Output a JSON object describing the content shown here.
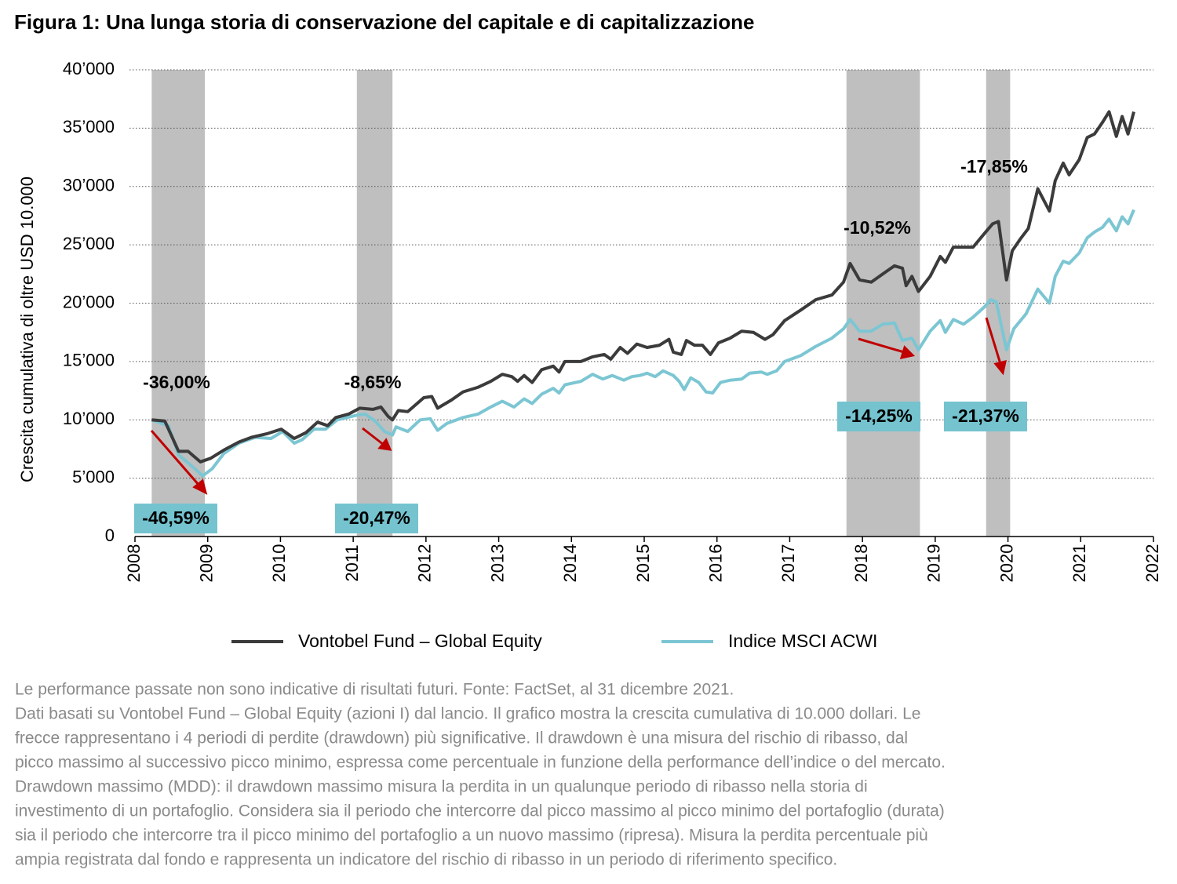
{
  "chart_data": {
    "type": "line",
    "title": "Figura 1: Una lunga storia di conservazione del capitale e di capitalizzazione",
    "y_label": "Crescita cumulativa di oltre USD 10.000",
    "xlim": [
      2008,
      2022
    ],
    "xticks": [
      2008,
      2009,
      2010,
      2011,
      2012,
      2013,
      2014,
      2015,
      2016,
      2017,
      2018,
      2019,
      2020,
      2021,
      2022
    ],
    "ylim": [
      0,
      40000
    ],
    "yticks": [
      0,
      {
        "value": 5000,
        "label": "5’000"
      },
      {
        "value": 10000,
        "label": "10’000"
      },
      {
        "value": 15000,
        "label": "15’000"
      },
      {
        "value": 20000,
        "label": "20’000"
      },
      {
        "value": 25000,
        "label": "25’000"
      },
      {
        "value": 30000,
        "label": "30’000"
      },
      {
        "value": 35000,
        "label": "35’000"
      },
      {
        "value": 40000,
        "label": "40’000"
      }
    ],
    "grid": true,
    "shaded_periods": [
      [
        2008.23,
        2008.96
      ],
      [
        2011.05,
        2011.54
      ],
      [
        2017.78,
        2018.79
      ],
      [
        2019.7,
        2020.03
      ]
    ],
    "shade_color": "#bfbfbf",
    "annotations": [
      "-36,00%",
      "-8,65%",
      "-10,52%",
      "-17,85%"
    ],
    "boxed_annotations": [
      "-46,59%",
      "-20,47%",
      "-14,25%",
      "-21,37%"
    ],
    "box_color": "#74c3cf",
    "series": [
      {
        "name": "Vontobel Fund – Global Equity",
        "color": "#3b3b3b",
        "x": [
          2008.23,
          2008.41,
          2008.6,
          2008.73,
          2008.9,
          2009.04,
          2009.22,
          2009.43,
          2009.6,
          2009.81,
          2010.01,
          2010.19,
          2010.35,
          2010.51,
          2010.65,
          2010.76,
          2010.94,
          2011.09,
          2011.27,
          2011.38,
          2011.48,
          2011.54,
          2011.62,
          2011.75,
          2011.97,
          2012.08,
          2012.16,
          2012.35,
          2012.51,
          2012.72,
          2012.89,
          2013.05,
          2013.18,
          2013.26,
          2013.35,
          2013.46,
          2013.59,
          2013.75,
          2013.83,
          2013.91,
          2014.13,
          2014.29,
          2014.45,
          2014.54,
          2014.67,
          2014.77,
          2014.9,
          2015.04,
          2015.21,
          2015.34,
          2015.4,
          2015.51,
          2015.58,
          2015.69,
          2015.8,
          2015.91,
          2016.02,
          2016.18,
          2016.34,
          2016.5,
          2016.66,
          2016.77,
          2016.93,
          2017.15,
          2017.36,
          2017.58,
          2017.74,
          2017.83,
          2017.96,
          2018.12,
          2018.28,
          2018.44,
          2018.55,
          2018.6,
          2018.68,
          2018.77,
          2018.93,
          2019.07,
          2019.14,
          2019.25,
          2019.52,
          2019.68,
          2019.79,
          2019.87,
          2019.98,
          2020.06,
          2020.17,
          2020.28,
          2020.41,
          2020.57,
          2020.65,
          2020.76,
          2020.84,
          2020.98,
          2021.09,
          2021.19,
          2021.3,
          2021.39,
          2021.49,
          2021.57,
          2021.65,
          2021.73
        ],
        "values": [
          10000,
          9900,
          7300,
          7300,
          6400,
          6700,
          7400,
          8100,
          8500,
          8800,
          9200,
          8400,
          8900,
          9800,
          9500,
          10200,
          10500,
          11000,
          10900,
          11100,
          10300,
          10000,
          10800,
          10700,
          11900,
          12000,
          11000,
          11700,
          12400,
          12800,
          13300,
          13900,
          13700,
          13300,
          13800,
          13200,
          14300,
          14600,
          14100,
          15000,
          15000,
          15400,
          15600,
          15200,
          16200,
          15700,
          16500,
          16200,
          16400,
          16900,
          15800,
          15600,
          16800,
          16400,
          16400,
          15600,
          16600,
          17000,
          17600,
          17500,
          16900,
          17300,
          18500,
          19400,
          20300,
          20700,
          21800,
          23400,
          22000,
          21800,
          22500,
          23200,
          23000,
          21500,
          22300,
          21000,
          22300,
          24000,
          23500,
          24800,
          24800,
          26000,
          26800,
          27000,
          22000,
          24500,
          25500,
          26400,
          29800,
          27900,
          30500,
          32000,
          31000,
          32300,
          34200,
          34500,
          35500,
          36400,
          34300,
          36000,
          34500,
          36400
        ]
      },
      {
        "name": "Indice MSCI ACWI",
        "color": "#7cc6d3",
        "x": [
          2008.23,
          2008.46,
          2008.6,
          2008.79,
          2008.93,
          2009.06,
          2009.22,
          2009.43,
          2009.65,
          2009.87,
          2010.03,
          2010.19,
          2010.3,
          2010.46,
          2010.62,
          2010.78,
          2011.05,
          2011.16,
          2011.3,
          2011.43,
          2011.54,
          2011.59,
          2011.75,
          2011.92,
          2012.06,
          2012.16,
          2012.29,
          2012.51,
          2012.72,
          2012.89,
          2013.05,
          2013.21,
          2013.35,
          2013.46,
          2013.59,
          2013.75,
          2013.83,
          2013.91,
          2014.13,
          2014.29,
          2014.43,
          2014.56,
          2014.72,
          2014.83,
          2014.94,
          2015.04,
          2015.15,
          2015.26,
          2015.4,
          2015.48,
          2015.55,
          2015.64,
          2015.75,
          2015.85,
          2015.94,
          2016.05,
          2016.18,
          2016.34,
          2016.45,
          2016.61,
          2016.69,
          2016.82,
          2016.93,
          2017.15,
          2017.36,
          2017.58,
          2017.74,
          2017.83,
          2017.96,
          2018.12,
          2018.28,
          2018.44,
          2018.55,
          2018.68,
          2018.77,
          2018.93,
          2019.07,
          2019.14,
          2019.25,
          2019.39,
          2019.52,
          2019.68,
          2019.76,
          2019.84,
          2019.98,
          2020.08,
          2020.25,
          2020.41,
          2020.57,
          2020.65,
          2020.76,
          2020.84,
          2020.98,
          2021.09,
          2021.19,
          2021.3,
          2021.39,
          2021.49,
          2021.57,
          2021.65,
          2021.73
        ],
        "values": [
          10000,
          9500,
          7000,
          6000,
          5200,
          5800,
          7100,
          8000,
          8500,
          8400,
          9000,
          8000,
          8300,
          9200,
          9200,
          10000,
          10400,
          10500,
          9900,
          9000,
          8700,
          9400,
          9000,
          10000,
          10100,
          9100,
          9700,
          10200,
          10500,
          11100,
          11600,
          11100,
          11800,
          11400,
          12200,
          12700,
          12300,
          13000,
          13300,
          13900,
          13500,
          13800,
          13400,
          13700,
          13800,
          14000,
          13700,
          14200,
          13800,
          13300,
          12600,
          13600,
          13200,
          12400,
          12300,
          13200,
          13400,
          13500,
          14000,
          14100,
          13900,
          14200,
          15000,
          15500,
          16300,
          17000,
          17800,
          18600,
          17600,
          17600,
          18200,
          18300,
          16800,
          17000,
          16000,
          17600,
          18500,
          17500,
          18600,
          18200,
          18800,
          19700,
          20300,
          20100,
          16000,
          17800,
          19100,
          21200,
          20000,
          22300,
          23600,
          23400,
          24300,
          25600,
          26100,
          26500,
          27200,
          26200,
          27400,
          26800,
          28000
        ]
      }
    ],
    "notes": [
      "Le performance passate non sono indicative di risultati futuri. Fonte: FactSet, al 31 dicembre 2021.",
      "Dati basati su Vontobel Fund – Global Equity (azioni I) dal lancio. Il grafico mostra la crescita cumulativa di 10.000 dollari. Le",
      "frecce rappresentano i 4 periodi di perdite (drawdown) più significative. Il drawdown è una misura del rischio di ribasso, dal",
      "picco massimo al successivo picco minimo, espressa come percentuale in funzione della performance dell’indice o del mercato.",
      "Drawdown massimo (MDD): il drawdown massimo misura la perdita in un qualunque periodo di ribasso nella storia di",
      "investimento di un portafoglio. Considera sia il periodo che intercorre dal picco massimo al picco minimo del portafoglio (durata)",
      "sia il periodo che intercorre tra il picco minimo del portafoglio a un nuovo massimo (ripresa). Misura la perdita percentuale più",
      "ampia registrata dal fondo e rappresenta un indicatore del rischio di ribasso in un periodo di riferimento specifico."
    ]
  }
}
